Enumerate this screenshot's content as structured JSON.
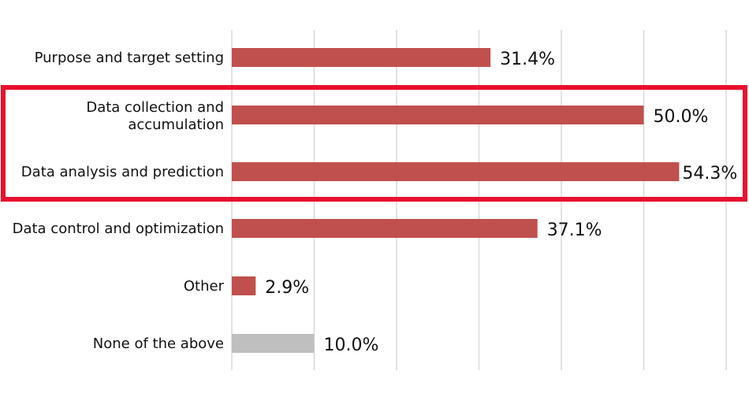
{
  "chart_data": {
    "type": "bar",
    "orientation": "horizontal",
    "title": "",
    "xlabel": "",
    "ylabel": "",
    "xlim": [
      0,
      60
    ],
    "grid": true,
    "categories": [
      "Purpose and target setting",
      "Data collection and accumulation",
      "Data analysis and prediction",
      "Data control and optimization",
      "Other",
      "None of the above"
    ],
    "values": [
      31.4,
      50.0,
      54.3,
      37.1,
      2.9,
      10.0
    ],
    "value_labels": [
      "31.4%",
      "50.0%",
      "54.3%",
      "37.1%",
      "2.9%",
      "10.0%"
    ],
    "bar_colors": [
      "#c0504d",
      "#c0504d",
      "#c0504d",
      "#c0504d",
      "#c0504d",
      "#bfbfbf"
    ],
    "highlight": {
      "categories": [
        "Data collection and accumulation",
        "Data analysis and prediction"
      ],
      "color": "#e8102e"
    },
    "gridline_color": "#d9d9d9"
  }
}
